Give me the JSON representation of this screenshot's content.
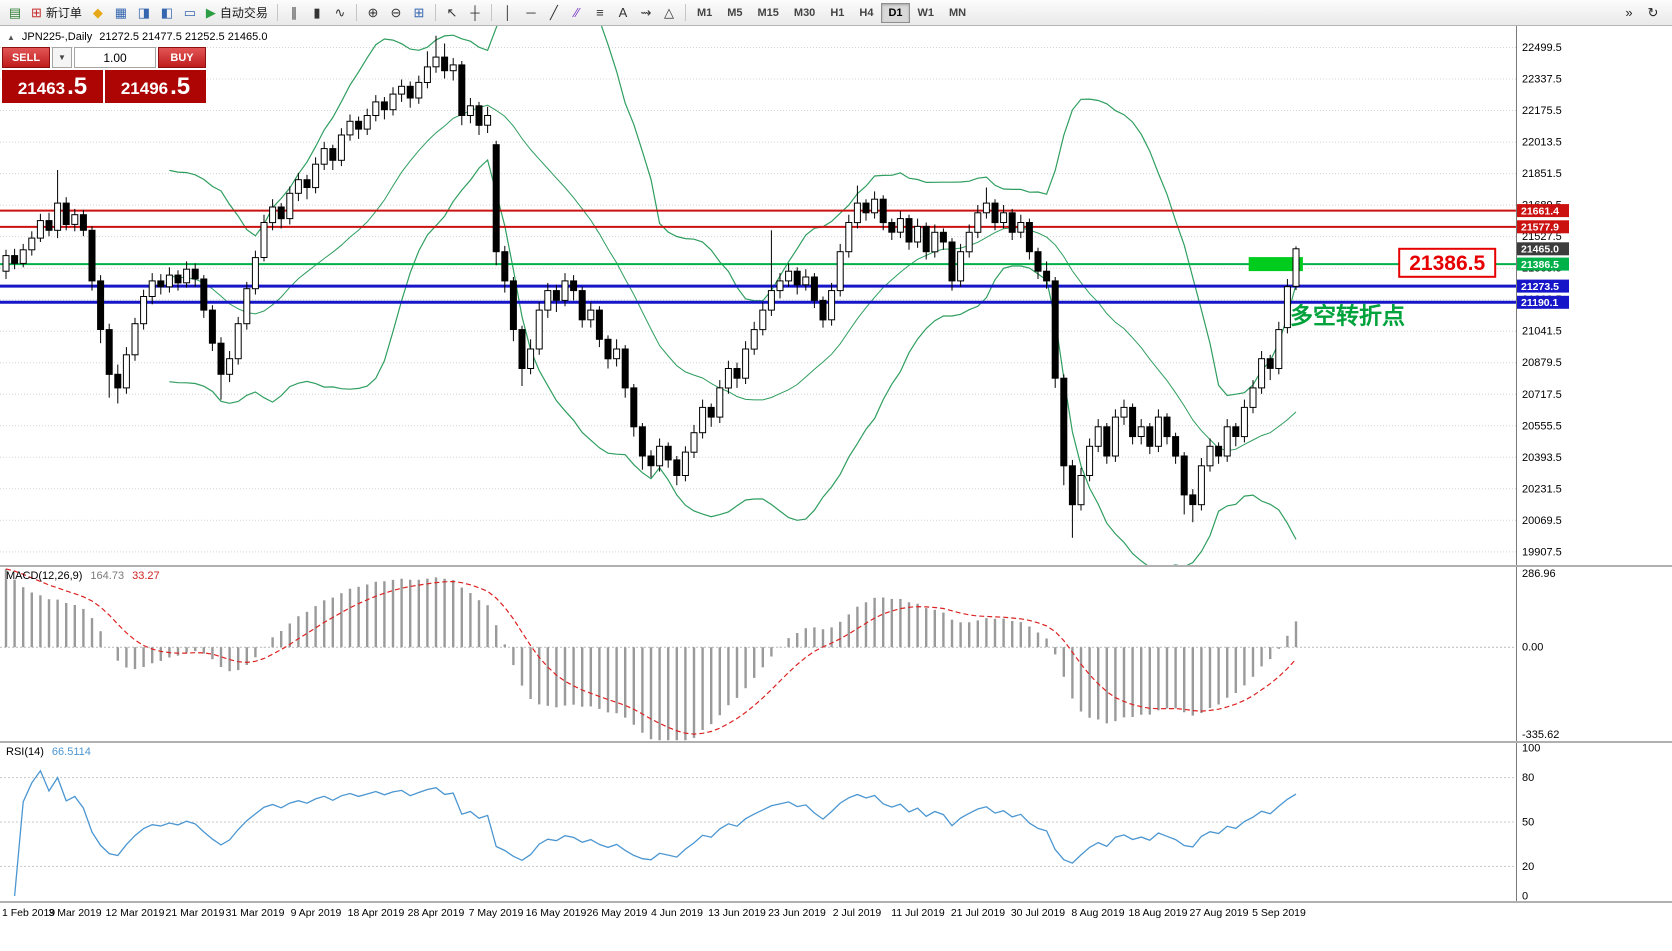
{
  "colors": {
    "bull": "#ffffff",
    "bear": "#000000",
    "candle_outline": "#000000",
    "bollinger": "#2f9e5f",
    "grid": "#d4d4d4",
    "macd_hist": "#9a9a9a",
    "macd_signal": "#dd2222",
    "rsi_line": "#4b96d1",
    "axis_line": "#7a7a7a",
    "level_red": "#cc1111",
    "level_blue": "#1616c8",
    "level_green": "#00b14a",
    "price_tag_bg": "#3c3c3c",
    "highlight_green": "#00cc1e"
  },
  "toolbar": {
    "buttons": [
      {
        "name": "new-chart-button",
        "icon": "new-chart-icon",
        "glyph": "▤",
        "glyph_color": "#2f7d32"
      },
      {
        "name": "new-order-button",
        "icon": "new-order-icon",
        "glyph": "⊞",
        "glyph_color": "#c62828",
        "label": "新订单"
      },
      {
        "name": "favorites-button",
        "icon": "favorites-icon",
        "glyph": "◆",
        "glyph_color": "#e6a817"
      },
      {
        "name": "market-watch-button",
        "icon": "market-watch-icon",
        "glyph": "▦",
        "glyph_color": "#3567b0"
      },
      {
        "name": "data-window-button",
        "icon": "data-window-icon",
        "glyph": "◨",
        "glyph_color": "#3567b0"
      },
      {
        "name": "navigator-button",
        "icon": "navigator-icon",
        "glyph": "◧",
        "glyph_color": "#3567b0"
      },
      {
        "name": "terminal-button",
        "icon": "terminal-icon",
        "glyph": "▭",
        "glyph_color": "#3567b0"
      },
      {
        "name": "autotrading-button",
        "icon": "autotrading-play-icon",
        "glyph": "▶",
        "glyph_color": "#2e9e44",
        "label": "自动交易"
      },
      {
        "type": "sep"
      },
      {
        "name": "bar-chart-button",
        "icon": "bar-chart-icon",
        "glyph": "∥",
        "glyph_color": "#333333"
      },
      {
        "name": "candlestick-chart-button",
        "icon": "candlestick-chart-icon",
        "glyph": "▮",
        "glyph_color": "#333333"
      },
      {
        "name": "line-chart-button",
        "icon": "line-chart-icon",
        "glyph": "∿",
        "glyph_color": "#333333"
      },
      {
        "type": "sep"
      },
      {
        "name": "zoom-in-button",
        "icon": "zoom-in-icon",
        "glyph": "⊕",
        "glyph_color": "#333333"
      },
      {
        "name": "zoom-out-button",
        "icon": "zoom-out-icon",
        "glyph": "⊖",
        "glyph_color": "#333333"
      },
      {
        "name": "tile-windows-button",
        "icon": "tile-windows-icon",
        "glyph": "⊞",
        "glyph_color": "#3567b0"
      },
      {
        "type": "sep"
      },
      {
        "name": "cursor-button",
        "icon": "cursor-icon",
        "glyph": "↖",
        "glyph_color": "#333333"
      },
      {
        "name": "crosshair-button",
        "icon": "crosshair-icon",
        "glyph": "┼",
        "glyph_color": "#333333"
      },
      {
        "type": "sep"
      },
      {
        "name": "vertical-line-button",
        "icon": "vertical-line-icon",
        "glyph": "│",
        "glyph_color": "#333333"
      },
      {
        "name": "horizontal-line-button",
        "icon": "horizontal-line-icon",
        "glyph": "─",
        "glyph_color": "#333333"
      },
      {
        "name": "trendline-button",
        "icon": "trendline-icon",
        "glyph": "╱",
        "glyph_color": "#333333"
      },
      {
        "name": "channel-button",
        "icon": "equidistant-channel-icon",
        "glyph": "∕∕",
        "glyph_color": "#7b3fc4"
      },
      {
        "name": "fibonacci-button",
        "icon": "fibonacci-retracement-icon",
        "glyph": "≡",
        "glyph_color": "#333333"
      },
      {
        "name": "text-button",
        "icon": "text-icon",
        "glyph": "A",
        "glyph_color": "#333333"
      },
      {
        "name": "arrows-button",
        "icon": "arrow-tools-icon",
        "glyph": "⇝",
        "glyph_color": "#333333"
      },
      {
        "name": "shapes-button",
        "icon": "shapes-icon",
        "glyph": "△",
        "glyph_color": "#333333"
      },
      {
        "type": "sep"
      }
    ],
    "timeframes": [
      "M1",
      "M5",
      "M15",
      "M30",
      "H1",
      "H4",
      "D1",
      "W1",
      "MN"
    ],
    "active_timeframe": "D1",
    "right_icons": [
      {
        "name": "chart-shift-button",
        "icon": "chart-shift-icon",
        "glyph": "»"
      },
      {
        "name": "auto-scroll-button",
        "icon": "auto-scroll-icon",
        "glyph": "↻"
      }
    ]
  },
  "chart": {
    "symbol_info": {
      "marker": "▲",
      "name": "JPN225-,Daily",
      "ohlc": "21272.5 21477.5 21252.5 21465.0"
    },
    "trade_panel": {
      "sell_label": "SELL",
      "buy_label": "BUY",
      "volume": "1.00",
      "dropdown_glyph": "▼",
      "sell_price_main": "21463",
      "sell_price_frac": ".5",
      "buy_price_main": "21496",
      "buy_price_frac": ".5"
    }
  },
  "chart_data": {
    "type": "candlestick",
    "title": "JPN225-,Daily",
    "y_axis_range": [
      19840,
      22610
    ],
    "y_axis_ticks": [
      22499.5,
      22337.5,
      22175.5,
      22013.5,
      21851.5,
      21689.5,
      21527.5,
      21365.5,
      21203.5,
      21041.5,
      20879.5,
      20717.5,
      20555.5,
      20393.5,
      20231.5,
      20069.5,
      19907.5
    ],
    "x_labels": [
      "1 Feb 2019",
      "3 Mar 2019",
      "12 Mar 2019",
      "21 Mar 2019",
      "31 Mar 2019",
      "9 Apr 2019",
      "18 Apr 2019",
      "28 Apr 2019",
      "7 May 2019",
      "16 May 2019",
      "26 May 2019",
      "4 Jun 2019",
      "13 Jun 2019",
      "23 Jun 2019",
      "2 Jul 2019",
      "11 Jul 2019",
      "21 Jul 2019",
      "30 Jul 2019",
      "8 Aug 2019",
      "18 Aug 2019",
      "27 Aug 2019",
      "5 Sep 2019"
    ],
    "x_label_bars": [
      1,
      8,
      15,
      22,
      29,
      36,
      43,
      50,
      57,
      64,
      71,
      78,
      85,
      92,
      99,
      106,
      113,
      120,
      127,
      134,
      141,
      148
    ],
    "bollinger": {
      "period": 20,
      "deviation": 2
    },
    "levels": [
      {
        "price": 21661.4,
        "label": "21661.4",
        "color": "#cc1111",
        "line_width": 2
      },
      {
        "price": 21577.9,
        "label": "21577.9",
        "color": "#cc1111",
        "line_width": 2
      },
      {
        "price": 21465.0,
        "label": "21465.0",
        "color": "#3c3c3c",
        "line_width": 0
      },
      {
        "price": 21386.5,
        "label": "21386.5",
        "color": "#00b14a",
        "line_width": 2
      },
      {
        "price": 21273.5,
        "label": "21273.5",
        "color": "#1616c8",
        "line_width": 3
      },
      {
        "price": 21190.1,
        "label": "21190.1",
        "color": "#1616c8",
        "line_width": 3
      }
    ],
    "objects": {
      "highlight_rect": {
        "bar_start": 144.5,
        "bar_end": 150.8,
        "price": 21386.5,
        "color": "#00cc1e"
      },
      "callout": {
        "text": "21386.5",
        "bar": 162,
        "price": 21393,
        "color": "#e60000"
      },
      "annotation": {
        "text": "多空转折点",
        "bar": 149.3,
        "price": 21080,
        "color": "#00a23c"
      }
    },
    "macd": {
      "label": "MACD(12,26,9)",
      "value_main": "164.73",
      "value_signal": "33.27",
      "fast": 12,
      "slow": 26,
      "signal": 9,
      "axis_max": 286.96,
      "axis_mid": 0,
      "axis_min": -335.62
    },
    "rsi": {
      "label": "RSI(14)",
      "value": "66.5114",
      "period": 14,
      "axis_ticks": [
        100,
        80,
        50,
        20,
        0
      ],
      "level_lines": [
        80,
        50,
        20
      ]
    },
    "candles": [
      [
        21350,
        21460,
        21310,
        21430
      ],
      [
        21430,
        21465,
        21360,
        21390
      ],
      [
        21390,
        21490,
        21370,
        21460
      ],
      [
        21460,
        21555,
        21430,
        21520
      ],
      [
        21520,
        21645,
        21500,
        21610
      ],
      [
        21610,
        21650,
        21530,
        21560
      ],
      [
        21560,
        21870,
        21520,
        21700
      ],
      [
        21700,
        21730,
        21560,
        21590
      ],
      [
        21590,
        21670,
        21555,
        21640
      ],
      [
        21640,
        21665,
        21530,
        21560
      ],
      [
        21560,
        21580,
        21250,
        21300
      ],
      [
        21300,
        21330,
        20980,
        21050
      ],
      [
        21050,
        21080,
        20700,
        20820
      ],
      [
        20820,
        20870,
        20670,
        20750
      ],
      [
        20750,
        20960,
        20720,
        20920
      ],
      [
        20920,
        21110,
        20890,
        21080
      ],
      [
        21080,
        21255,
        21050,
        21220
      ],
      [
        21220,
        21340,
        21180,
        21300
      ],
      [
        21300,
        21335,
        21230,
        21270
      ],
      [
        21270,
        21370,
        21240,
        21330
      ],
      [
        21330,
        21355,
        21250,
        21290
      ],
      [
        21290,
        21400,
        21265,
        21360
      ],
      [
        21360,
        21390,
        21270,
        21310
      ],
      [
        21310,
        21330,
        21110,
        21150
      ],
      [
        21150,
        21175,
        20940,
        20980
      ],
      [
        20980,
        21010,
        20690,
        20820
      ],
      [
        20820,
        20940,
        20780,
        20900
      ],
      [
        20900,
        21115,
        20870,
        21080
      ],
      [
        21080,
        21295,
        21050,
        21260
      ],
      [
        21260,
        21455,
        21230,
        21420
      ],
      [
        21420,
        21640,
        21400,
        21600
      ],
      [
        21600,
        21720,
        21560,
        21680
      ],
      [
        21680,
        21700,
        21570,
        21620
      ],
      [
        21620,
        21785,
        21590,
        21750
      ],
      [
        21750,
        21855,
        21710,
        21820
      ],
      [
        21820,
        21845,
        21720,
        21780
      ],
      [
        21780,
        21935,
        21750,
        21900
      ],
      [
        21900,
        22015,
        21870,
        21980
      ],
      [
        21980,
        22000,
        21870,
        21920
      ],
      [
        21920,
        22085,
        21890,
        22050
      ],
      [
        22050,
        22155,
        22020,
        22120
      ],
      [
        22120,
        22145,
        22030,
        22080
      ],
      [
        22080,
        22185,
        22050,
        22150
      ],
      [
        22150,
        22255,
        22120,
        22220
      ],
      [
        22220,
        22245,
        22130,
        22180
      ],
      [
        22180,
        22295,
        22150,
        22260
      ],
      [
        22260,
        22335,
        22220,
        22300
      ],
      [
        22300,
        22325,
        22190,
        22240
      ],
      [
        22240,
        22355,
        22210,
        22320
      ],
      [
        22320,
        22480,
        22290,
        22400
      ],
      [
        22400,
        22560,
        22370,
        22450
      ],
      [
        22450,
        22520,
        22340,
        22380
      ],
      [
        22380,
        22445,
        22330,
        22410
      ],
      [
        22410,
        22430,
        22100,
        22150
      ],
      [
        22150,
        22240,
        22110,
        22200
      ],
      [
        22200,
        22220,
        22050,
        22100
      ],
      [
        22100,
        22195,
        22060,
        22150
      ],
      [
        22000,
        22020,
        21380,
        21450
      ],
      [
        21450,
        21480,
        21240,
        21300
      ],
      [
        21300,
        21320,
        20990,
        21050
      ],
      [
        21050,
        21070,
        20760,
        20850
      ],
      [
        20850,
        21000,
        20820,
        20950
      ],
      [
        20950,
        21190,
        20920,
        21150
      ],
      [
        21150,
        21290,
        21110,
        21250
      ],
      [
        21250,
        21280,
        21140,
        21200
      ],
      [
        21200,
        21340,
        21170,
        21300
      ],
      [
        21300,
        21330,
        21200,
        21250
      ],
      [
        21250,
        21270,
        21060,
        21100
      ],
      [
        21100,
        21190,
        21060,
        21150
      ],
      [
        21150,
        21170,
        20960,
        21000
      ],
      [
        21000,
        21020,
        20850,
        20900
      ],
      [
        20900,
        21000,
        20860,
        20950
      ],
      [
        20950,
        20970,
        20700,
        20750
      ],
      [
        20750,
        20770,
        20500,
        20550
      ],
      [
        20550,
        20570,
        20330,
        20400
      ],
      [
        20400,
        20430,
        20290,
        20350
      ],
      [
        20350,
        20490,
        20320,
        20450
      ],
      [
        20450,
        20470,
        20340,
        20380
      ],
      [
        20380,
        20400,
        20250,
        20300
      ],
      [
        20300,
        20450,
        20270,
        20420
      ],
      [
        20420,
        20560,
        20390,
        20520
      ],
      [
        20520,
        20690,
        20490,
        20650
      ],
      [
        20650,
        20670,
        20550,
        20600
      ],
      [
        20600,
        20790,
        20570,
        20750
      ],
      [
        20750,
        20890,
        20720,
        20850
      ],
      [
        20850,
        20880,
        20750,
        20800
      ],
      [
        20800,
        20990,
        20770,
        20950
      ],
      [
        20950,
        21090,
        20920,
        21050
      ],
      [
        21050,
        21190,
        21020,
        21150
      ],
      [
        21150,
        21560,
        21120,
        21250
      ],
      [
        21250,
        21340,
        21210,
        21300
      ],
      [
        21300,
        21390,
        21270,
        21350
      ],
      [
        21350,
        21370,
        21230,
        21280
      ],
      [
        21280,
        21360,
        21250,
        21320
      ],
      [
        21320,
        21340,
        21160,
        21200
      ],
      [
        21200,
        21220,
        21060,
        21100
      ],
      [
        21100,
        21290,
        21070,
        21250
      ],
      [
        21250,
        21490,
        21220,
        21450
      ],
      [
        21450,
        21640,
        21420,
        21600
      ],
      [
        21600,
        21790,
        21570,
        21700
      ],
      [
        21700,
        21720,
        21610,
        21650
      ],
      [
        21650,
        21760,
        21620,
        21720
      ],
      [
        21720,
        21740,
        21560,
        21600
      ],
      [
        21600,
        21620,
        21510,
        21550
      ],
      [
        21550,
        21660,
        21520,
        21620
      ],
      [
        21620,
        21640,
        21460,
        21500
      ],
      [
        21500,
        21620,
        21470,
        21580
      ],
      [
        21580,
        21600,
        21410,
        21450
      ],
      [
        21450,
        21590,
        21420,
        21550
      ],
      [
        21550,
        21570,
        21460,
        21500
      ],
      [
        21500,
        21520,
        21250,
        21300
      ],
      [
        21300,
        21490,
        21270,
        21450
      ],
      [
        21450,
        21590,
        21420,
        21550
      ],
      [
        21550,
        21690,
        21520,
        21650
      ],
      [
        21650,
        21780,
        21620,
        21700
      ],
      [
        21700,
        21720,
        21560,
        21600
      ],
      [
        21600,
        21690,
        21570,
        21650
      ],
      [
        21650,
        21670,
        21510,
        21550
      ],
      [
        21550,
        21640,
        21520,
        21600
      ],
      [
        21600,
        21620,
        21410,
        21450
      ],
      [
        21450,
        21470,
        21310,
        21350
      ],
      [
        21350,
        21400,
        21260,
        21300
      ],
      [
        21300,
        21320,
        20750,
        20800
      ],
      [
        20800,
        20820,
        20250,
        20350
      ],
      [
        20350,
        20380,
        19980,
        20150
      ],
      [
        20150,
        20340,
        20120,
        20300
      ],
      [
        20300,
        20490,
        20270,
        20450
      ],
      [
        20450,
        20590,
        20420,
        20550
      ],
      [
        20550,
        20570,
        20360,
        20400
      ],
      [
        20400,
        20640,
        20370,
        20600
      ],
      [
        20600,
        20690,
        20560,
        20650
      ],
      [
        20650,
        20670,
        20460,
        20500
      ],
      [
        20500,
        20590,
        20460,
        20550
      ],
      [
        20550,
        20570,
        20410,
        20450
      ],
      [
        20450,
        20640,
        20420,
        20600
      ],
      [
        20600,
        20620,
        20460,
        20500
      ],
      [
        20500,
        20520,
        20360,
        20400
      ],
      [
        20400,
        20420,
        20100,
        20200
      ],
      [
        20200,
        20230,
        20060,
        20150
      ],
      [
        20150,
        20390,
        20120,
        20350
      ],
      [
        20350,
        20490,
        20320,
        20450
      ],
      [
        20450,
        20470,
        20360,
        20400
      ],
      [
        20400,
        20590,
        20370,
        20550
      ],
      [
        20550,
        20570,
        20450,
        20500
      ],
      [
        20500,
        20690,
        20470,
        20650
      ],
      [
        20650,
        20790,
        20620,
        20750
      ],
      [
        20750,
        20940,
        20720,
        20900
      ],
      [
        20900,
        20920,
        20790,
        20850
      ],
      [
        20850,
        21090,
        20820,
        21050
      ],
      [
        21060,
        21310,
        21030,
        21270
      ],
      [
        21272.5,
        21477.5,
        21252.5,
        21465
      ]
    ]
  }
}
